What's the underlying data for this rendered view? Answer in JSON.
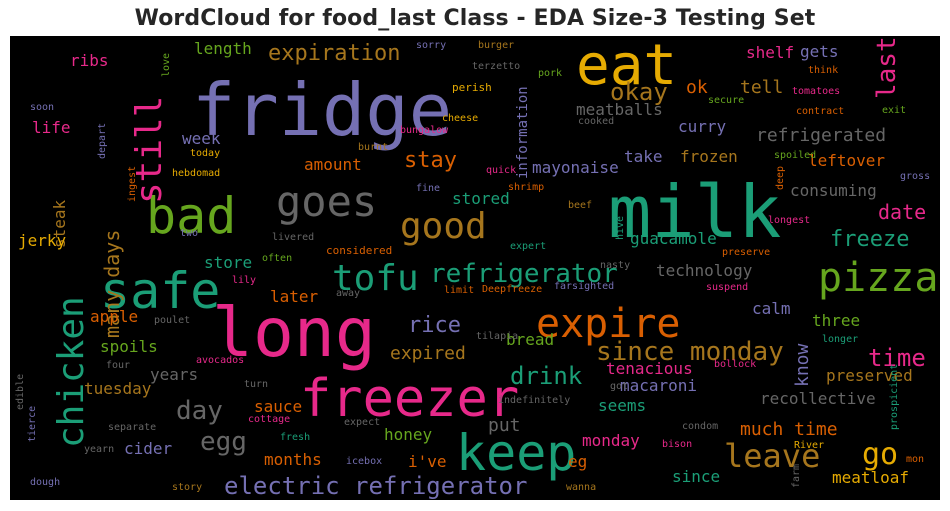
{
  "chart_data": {
    "type": "wordcloud",
    "title": "WordCloud for food_last Class - EDA Size-3 Testing Set",
    "palette": [
      "#1b9e77",
      "#d95f02",
      "#7570b3",
      "#e7298a",
      "#66a61e",
      "#e6ab02",
      "#a6761d",
      "#666666"
    ],
    "words": [
      {
        "text": "fridge",
        "color": "#7570b3"
      },
      {
        "text": "milk",
        "color": "#1b9e77"
      },
      {
        "text": "long",
        "color": "#e7298a"
      },
      {
        "text": "eat",
        "color": "#e6ab02"
      },
      {
        "text": "freezer",
        "color": "#e7298a"
      },
      {
        "text": "bad",
        "color": "#66a61e"
      },
      {
        "text": "safe",
        "color": "#1b9e77"
      },
      {
        "text": "keep",
        "color": "#1b9e77"
      },
      {
        "text": "goes",
        "color": "#666666"
      },
      {
        "text": "expire",
        "color": "#d95f02"
      },
      {
        "text": "pizza",
        "color": "#66a61e"
      },
      {
        "text": "chicken",
        "color": "#1b9e77"
      },
      {
        "text": "still",
        "color": "#e7298a"
      },
      {
        "text": "tofu",
        "color": "#1b9e77"
      },
      {
        "text": "good",
        "color": "#a6761d"
      },
      {
        "text": "leave",
        "color": "#a6761d"
      },
      {
        "text": "refrigerator",
        "color": "#1b9e77"
      },
      {
        "text": "since monday",
        "color": "#a6761d"
      },
      {
        "text": "electric refrigerator",
        "color": "#7570b3"
      },
      {
        "text": "expiration",
        "color": "#a6761d"
      },
      {
        "text": "okay",
        "color": "#a6761d"
      },
      {
        "text": "last",
        "color": "#e7298a"
      },
      {
        "text": "day",
        "color": "#666666"
      },
      {
        "text": "egg",
        "color": "#666666"
      },
      {
        "text": "drink",
        "color": "#1b9e77"
      },
      {
        "text": "go",
        "color": "#e6ab02"
      },
      {
        "text": "time",
        "color": "#e7298a"
      },
      {
        "text": "rice",
        "color": "#7570b3"
      },
      {
        "text": "stay",
        "color": "#d95f02"
      },
      {
        "text": "freeze",
        "color": "#1b9e77"
      },
      {
        "text": "many days",
        "color": "#a6761d"
      },
      {
        "text": "refrigerated",
        "color": "#666666"
      },
      {
        "text": "much time",
        "color": "#d95f02"
      },
      {
        "text": "date",
        "color": "#e7298a"
      },
      {
        "text": "expired",
        "color": "#a6761d"
      },
      {
        "text": "put",
        "color": "#666666"
      },
      {
        "text": "know",
        "color": "#7570b3"
      },
      {
        "text": "length",
        "color": "#66a61e"
      },
      {
        "text": "tell",
        "color": "#a6761d"
      },
      {
        "text": "ok",
        "color": "#d95f02"
      },
      {
        "text": "curry",
        "color": "#7570b3"
      },
      {
        "text": "guacamole",
        "color": "#1b9e77"
      },
      {
        "text": "technology",
        "color": "#666666"
      },
      {
        "text": "mayonaise",
        "color": "#7570b3"
      },
      {
        "text": "take",
        "color": "#7570b3"
      },
      {
        "text": "frozen",
        "color": "#a6761d"
      },
      {
        "text": "store",
        "color": "#1b9e77"
      },
      {
        "text": "meatballs",
        "color": "#666666"
      },
      {
        "text": "information",
        "color": "#7570b3"
      },
      {
        "text": "stored",
        "color": "#1b9e77"
      },
      {
        "text": "consuming",
        "color": "#666666"
      },
      {
        "text": "leftover",
        "color": "#d95f02"
      },
      {
        "text": "week",
        "color": "#7570b3"
      },
      {
        "text": "amount",
        "color": "#d95f02"
      },
      {
        "text": "life",
        "color": "#e7298a"
      },
      {
        "text": "ribs",
        "color": "#e7298a"
      },
      {
        "text": "shelf",
        "color": "#e7298a"
      },
      {
        "text": "gets",
        "color": "#7570b3"
      },
      {
        "text": "steak",
        "color": "#a6761d"
      },
      {
        "text": "jerky",
        "color": "#e6ab02"
      },
      {
        "text": "apple",
        "color": "#d95f02"
      },
      {
        "text": "spoils",
        "color": "#66a61e"
      },
      {
        "text": "tuesday",
        "color": "#a6761d"
      },
      {
        "text": "years",
        "color": "#666666"
      },
      {
        "text": "later",
        "color": "#d95f02"
      },
      {
        "text": "calm",
        "color": "#7570b3"
      },
      {
        "text": "three",
        "color": "#66a61e"
      },
      {
        "text": "preserved",
        "color": "#a6761d"
      },
      {
        "text": "recollective",
        "color": "#666666"
      },
      {
        "text": "tenacious",
        "color": "#e7298a"
      },
      {
        "text": "bread",
        "color": "#66a61e"
      },
      {
        "text": "macaroni",
        "color": "#7570b3"
      },
      {
        "text": "seems",
        "color": "#1b9e77"
      },
      {
        "text": "sauce",
        "color": "#d95f02"
      },
      {
        "text": "honey",
        "color": "#66a61e"
      },
      {
        "text": "cider",
        "color": "#7570b3"
      },
      {
        "text": "months",
        "color": "#d95f02"
      },
      {
        "text": "i've",
        "color": "#d95f02"
      },
      {
        "text": "eg",
        "color": "#d95f02"
      },
      {
        "text": "monday",
        "color": "#e7298a"
      },
      {
        "text": "since",
        "color": "#1b9e77"
      },
      {
        "text": "meatloaf",
        "color": "#e6ab02"
      },
      {
        "text": "mon",
        "color": "#d95f02"
      },
      {
        "text": "considered",
        "color": "#d95f02"
      },
      {
        "text": "sorry",
        "color": "#7570b3"
      },
      {
        "text": "burger",
        "color": "#a6761d"
      },
      {
        "text": "terzetto",
        "color": "#666666"
      },
      {
        "text": "love",
        "color": "#66a61e"
      },
      {
        "text": "soon",
        "color": "#7570b3"
      },
      {
        "text": "depart",
        "color": "#7570b3"
      },
      {
        "text": "perish",
        "color": "#e6ab02"
      },
      {
        "text": "pork",
        "color": "#66a61e"
      },
      {
        "text": "cheese",
        "color": "#e6ab02"
      },
      {
        "text": "bungalow",
        "color": "#e7298a"
      },
      {
        "text": "cooked",
        "color": "#666666"
      },
      {
        "text": "secure",
        "color": "#66a61e"
      },
      {
        "text": "think",
        "color": "#d95f02"
      },
      {
        "text": "tomatoes",
        "color": "#e7298a"
      },
      {
        "text": "contract",
        "color": "#d95f02"
      },
      {
        "text": "exit",
        "color": "#66a61e"
      },
      {
        "text": "today",
        "color": "#e6ab02"
      },
      {
        "text": "ingest",
        "color": "#d95f02"
      },
      {
        "text": "hebdomad",
        "color": "#e6ab02"
      },
      {
        "text": "burnt",
        "color": "#a6761d"
      },
      {
        "text": "quick",
        "color": "#e7298a"
      },
      {
        "text": "shrimp",
        "color": "#d95f02"
      },
      {
        "text": "fine",
        "color": "#7570b3"
      },
      {
        "text": "spoiled",
        "color": "#66a61e"
      },
      {
        "text": "deep",
        "color": "#d95f02"
      },
      {
        "text": "gross",
        "color": "#7570b3"
      },
      {
        "text": "beef",
        "color": "#a6761d"
      },
      {
        "text": "hive",
        "color": "#1b9e77"
      },
      {
        "text": "longest",
        "color": "#e7298a"
      },
      {
        "text": "two",
        "color": "#7570b3"
      },
      {
        "text": "livered",
        "color": "#666666"
      },
      {
        "text": "expert",
        "color": "#1b9e77"
      },
      {
        "text": "preserve",
        "color": "#d95f02"
      },
      {
        "text": "often",
        "color": "#66a61e"
      },
      {
        "text": "lily",
        "color": "#e7298a"
      },
      {
        "text": "nasty",
        "color": "#666666"
      },
      {
        "text": "away",
        "color": "#666666"
      },
      {
        "text": "limit",
        "color": "#d95f02"
      },
      {
        "text": "Deepfreeze",
        "color": "#d95f02"
      },
      {
        "text": "farsighted",
        "color": "#7570b3"
      },
      {
        "text": "suspend",
        "color": "#e7298a"
      },
      {
        "text": "poulet",
        "color": "#666666"
      },
      {
        "text": "tilapia",
        "color": "#666666"
      },
      {
        "text": "longer",
        "color": "#1b9e77"
      },
      {
        "text": "avocados",
        "color": "#e7298a"
      },
      {
        "text": "four",
        "color": "#666666"
      },
      {
        "text": "turn",
        "color": "#666666"
      },
      {
        "text": "got",
        "color": "#666666"
      },
      {
        "text": "bollock",
        "color": "#e7298a"
      },
      {
        "text": "edible",
        "color": "#666666"
      },
      {
        "text": "tierce",
        "color": "#7570b3"
      },
      {
        "text": "indefinitely",
        "color": "#666666"
      },
      {
        "text": "cottage",
        "color": "#e7298a"
      },
      {
        "text": "expect",
        "color": "#666666"
      },
      {
        "text": "condom",
        "color": "#666666"
      },
      {
        "text": "separate",
        "color": "#666666"
      },
      {
        "text": "fresh",
        "color": "#1b9e77"
      },
      {
        "text": "bison",
        "color": "#e7298a"
      },
      {
        "text": "River",
        "color": "#e6ab02"
      },
      {
        "text": "prospicient",
        "color": "#1b9e77"
      },
      {
        "text": "yearn",
        "color": "#666666"
      },
      {
        "text": "icebox",
        "color": "#7570b3"
      },
      {
        "text": "farm",
        "color": "#666666"
      },
      {
        "text": "dough",
        "color": "#7570b3"
      },
      {
        "text": "story",
        "color": "#a6761d"
      },
      {
        "text": "wanna",
        "color": "#a6761d"
      }
    ]
  }
}
